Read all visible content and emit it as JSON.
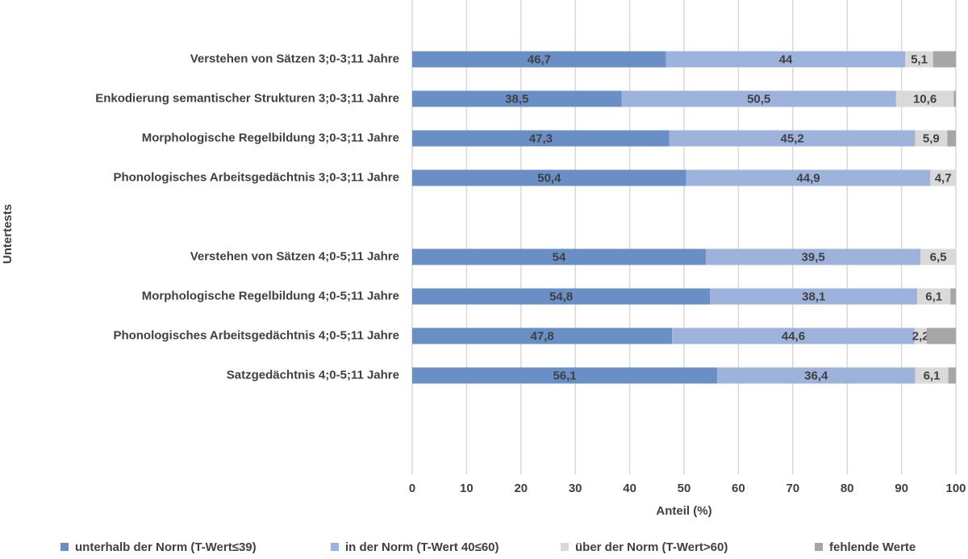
{
  "chart_data": {
    "type": "bar",
    "orientation": "horizontal",
    "stacked": true,
    "x_label": "Anteil (%)",
    "y_label": "Untertests",
    "categories": [
      null,
      "Verstehen von Sätzen 3;0-3;11 Jahre",
      "Enkodierung semantischer Strukturen 3;0-3;11 Jahre",
      "Morphologische Regelbildung 3;0-3;11 Jahre",
      "Phonologisches Arbeitsgedächtnis 3;0-3;11 Jahre",
      null,
      "Verstehen von Sätzen  4;0-5;11 Jahre",
      "Morphologische Regelbildung 4;0-5;11 Jahre",
      "Phonologisches Arbeitsgedächtnis 4;0-5;11 Jahre",
      "Satzgedächtnis 4;0-5;11 Jahre",
      null,
      null
    ],
    "series": [
      {
        "name": "unterhalb der Norm (T-Wert≤39)",
        "color": "#6a8fc7",
        "values": [
          null,
          46.7,
          38.5,
          47.3,
          50.4,
          null,
          54,
          54.8,
          47.8,
          56.1,
          null,
          null
        ],
        "value_labels": [
          null,
          "46,7",
          "38,5",
          "47,3",
          "50,4",
          null,
          "54",
          "54,8",
          "47,8",
          "56,1",
          null,
          null
        ]
      },
      {
        "name": "in der Norm (T-Wert 40≤60)",
        "color": "#9db3dc",
        "values": [
          null,
          44,
          50.5,
          45.2,
          44.9,
          null,
          39.5,
          38.1,
          44.6,
          36.4,
          null,
          null
        ],
        "value_labels": [
          null,
          "44",
          "50,5",
          "45,2",
          "44,9",
          null,
          "39,5",
          "38,1",
          "44,6",
          "36,4",
          null,
          null
        ]
      },
      {
        "name": "über der Norm (T-Wert>60)",
        "color": "#d9d9d9",
        "values": [
          null,
          5.1,
          10.6,
          5.9,
          4.7,
          null,
          6.5,
          6.1,
          2.2,
          6.1,
          null,
          null
        ],
        "value_labels": [
          null,
          "5,1",
          "10,6",
          "5,9",
          "4,7",
          null,
          "6,5",
          "6,1",
          "2,2",
          "6,1",
          null,
          null
        ]
      },
      {
        "name": "fehlende Werte",
        "color": "#a6a6a6",
        "values": [
          null,
          4.2,
          0.4,
          1.6,
          0,
          null,
          0,
          1,
          5.4,
          1.4,
          null,
          null
        ]
      }
    ],
    "xlim": [
      0,
      100
    ],
    "xticks": [
      0,
      10,
      20,
      30,
      40,
      50,
      60,
      70,
      80,
      90,
      100
    ],
    "grid": true,
    "legend": "bottom"
  }
}
